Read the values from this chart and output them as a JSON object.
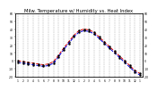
{
  "title": "Milw. Temperature w/ Humidity vs. Heat Index",
  "title_fontsize": 3.8,
  "background_color": "#ffffff",
  "plot_bg": "#ffffff",
  "grid_color": "#aaaaaa",
  "temp_color": "#0000dd",
  "heat_color": "#dd0000",
  "dot_color": "#000000",
  "ylim": [
    -20,
    60
  ],
  "y_ticks": [
    -20,
    -10,
    0,
    10,
    20,
    30,
    40,
    50,
    60
  ],
  "y_tick_labels": [
    "-20",
    "-10",
    "0",
    "10",
    "20",
    "30",
    "40",
    "50",
    "60"
  ],
  "temp_values": [
    -2,
    -3,
    -4,
    -5,
    -6,
    -7,
    -6,
    -3,
    5,
    14,
    22,
    30,
    36,
    38,
    37,
    34,
    28,
    22,
    16,
    10,
    4,
    -2,
    -8,
    -14,
    -18
  ],
  "heat_values": [
    0,
    -1,
    -2,
    -3,
    -4,
    -5,
    -4,
    -1,
    7,
    16,
    24,
    32,
    38,
    40,
    39,
    36,
    30,
    24,
    18,
    12,
    6,
    0,
    -6,
    -12,
    -16
  ],
  "x_labels": [
    "1",
    "2",
    "3",
    "4",
    "5",
    "6",
    "7",
    "8",
    "9",
    "10",
    "11",
    "12",
    "1",
    "2",
    "3",
    "4",
    "5",
    "6",
    "7",
    "8",
    "9",
    "10",
    "11",
    "12",
    "1"
  ]
}
